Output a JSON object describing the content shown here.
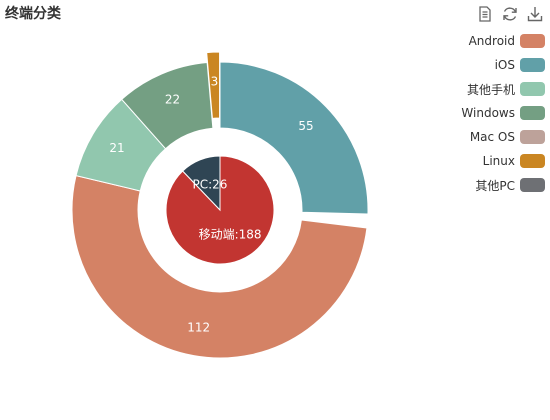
{
  "chart_data": {
    "type": "pie",
    "title": "终端分类",
    "inner": {
      "slices": [
        {
          "name": "移动端",
          "value": 188,
          "color": "#c23531",
          "label": "移动端:188"
        },
        {
          "name": "PC",
          "value": 26,
          "color": "#2f4554",
          "label": "PC:26"
        }
      ]
    },
    "outer": {
      "slices": [
        {
          "name": "iOS",
          "value": 55,
          "color": "#61a0a8",
          "label": "55"
        },
        {
          "name": "Android",
          "value": 112,
          "color": "#d48265",
          "label": "112"
        },
        {
          "name": "其他手机",
          "value": 21,
          "color": "#91c7ae",
          "label": "21"
        },
        {
          "name": "Windows",
          "value": 22,
          "color": "#749f83",
          "label": "22"
        },
        {
          "name": "Linux",
          "value": 3,
          "color": "#ca8622",
          "label": "3"
        },
        {
          "name": "Mac OS",
          "value": 0,
          "color": "#bda29a",
          "label": ""
        },
        {
          "name": "其他PC",
          "value": 0,
          "color": "#6e7074",
          "label": ""
        }
      ]
    },
    "legend": {
      "position": "top-right",
      "items": [
        {
          "name": "Android",
          "color": "#d48265"
        },
        {
          "name": "iOS",
          "color": "#61a0a8"
        },
        {
          "name": "其他手机",
          "color": "#91c7ae"
        },
        {
          "name": "Windows",
          "color": "#749f83"
        },
        {
          "name": "Mac OS",
          "color": "#bda29a"
        },
        {
          "name": "Linux",
          "color": "#ca8622"
        },
        {
          "name": "其他PC",
          "color": "#6e7074"
        }
      ]
    }
  },
  "toolbox": {
    "icons": [
      "data-view-icon",
      "restore-icon",
      "save-image-icon"
    ]
  }
}
